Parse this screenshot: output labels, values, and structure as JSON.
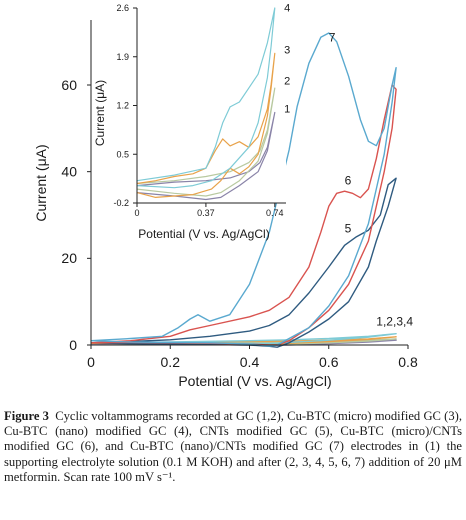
{
  "chart_data": [
    {
      "type": "line",
      "xlabel": "Potential (V vs. Ag/AgCl)",
      "ylabel": "Current (μA)",
      "xlim": [
        0,
        0.8
      ],
      "ylim": [
        0,
        75
      ],
      "xticks": [
        "0",
        "0.2",
        "0.4",
        "0.6",
        "0.8"
      ],
      "yticks": [
        "0",
        "20",
        "40",
        "60"
      ],
      "grid": false,
      "curve_labels": [
        {
          "text": "7",
          "x": 0.6,
          "y": 70
        },
        {
          "text": "6",
          "x": 0.64,
          "y": 37
        },
        {
          "text": "5",
          "x": 0.64,
          "y": 26
        },
        {
          "text": "1,2,3,4",
          "x": 0.72,
          "y": 4.5
        }
      ],
      "series": [
        {
          "name": "1",
          "color": "#8a84a8",
          "x": [
            0.0,
            0.2,
            0.4,
            0.5,
            0.6,
            0.7,
            0.77,
            0.7,
            0.6,
            0.5,
            0.45,
            0.3,
            0.1,
            0.0
          ],
          "y": [
            0.3,
            0.4,
            0.5,
            0.5,
            0.6,
            0.9,
            1.1,
            0.7,
            0.3,
            0.0,
            -0.1,
            0.1,
            0.2,
            0.3
          ]
        },
        {
          "name": "2",
          "color": "#b8c9a0",
          "x": [
            0.0,
            0.2,
            0.4,
            0.5,
            0.6,
            0.7,
            0.77,
            0.7,
            0.6,
            0.5,
            0.45,
            0.3,
            0.1,
            0.0
          ],
          "y": [
            0.4,
            0.5,
            0.6,
            0.7,
            0.8,
            1.1,
            1.4,
            0.9,
            0.5,
            0.2,
            0.0,
            0.2,
            0.3,
            0.4
          ]
        },
        {
          "name": "3",
          "color": "#e8a24a",
          "x": [
            0.0,
            0.2,
            0.4,
            0.5,
            0.6,
            0.7,
            0.77,
            0.7,
            0.6,
            0.5,
            0.45,
            0.3,
            0.1,
            0.0
          ],
          "y": [
            0.4,
            0.6,
            0.8,
            0.9,
            1.1,
            1.4,
            1.9,
            1.3,
            0.8,
            0.4,
            0.1,
            0.3,
            0.4,
            0.4
          ]
        },
        {
          "name": "4",
          "color": "#7ecbd6",
          "x": [
            0.0,
            0.2,
            0.4,
            0.5,
            0.6,
            0.7,
            0.77,
            0.7,
            0.6,
            0.5,
            0.45,
            0.3,
            0.1,
            0.0
          ],
          "y": [
            0.5,
            0.7,
            1.0,
            1.2,
            1.5,
            2.0,
            2.6,
            1.8,
            1.1,
            0.6,
            0.3,
            0.5,
            0.5,
            0.5
          ]
        },
        {
          "name": "5",
          "color": "#2f5b80",
          "x": [
            0.0,
            0.1,
            0.2,
            0.3,
            0.4,
            0.45,
            0.5,
            0.55,
            0.6,
            0.64,
            0.67,
            0.7,
            0.73,
            0.75,
            0.77,
            0.75,
            0.72,
            0.7,
            0.65,
            0.6,
            0.55,
            0.5,
            0.47,
            0.45,
            0.4,
            0.3,
            0.2,
            0.1,
            0.0
          ],
          "y": [
            0.5,
            0.8,
            1.2,
            2.0,
            3.2,
            4.5,
            7.0,
            12.0,
            18.0,
            23.0,
            25.0,
            26.5,
            30.0,
            37.0,
            38.5,
            32.0,
            24.0,
            18.0,
            10.0,
            6.0,
            3.0,
            0.5,
            -0.5,
            -0.3,
            0.0,
            0.1,
            0.2,
            0.3,
            0.5
          ]
        },
        {
          "name": "6",
          "color": "#d9534f",
          "x": [
            0.0,
            0.1,
            0.2,
            0.25,
            0.3,
            0.4,
            0.45,
            0.5,
            0.55,
            0.58,
            0.6,
            0.62,
            0.64,
            0.66,
            0.68,
            0.7,
            0.72,
            0.74,
            0.76,
            0.77,
            0.76,
            0.74,
            0.72,
            0.7,
            0.65,
            0.6,
            0.55,
            0.5,
            0.47,
            0.45,
            0.4,
            0.3,
            0.2,
            0.1,
            0.0
          ],
          "y": [
            0.5,
            1.0,
            2.0,
            3.5,
            4.5,
            6.5,
            8.0,
            11.0,
            18.0,
            26.0,
            32.0,
            35.0,
            35.5,
            35.0,
            34.0,
            36.0,
            43.0,
            52.0,
            60.0,
            59.0,
            50.0,
            40.0,
            32.0,
            24.0,
            14.0,
            8.0,
            4.0,
            1.0,
            0.0,
            0.0,
            0.2,
            0.4,
            0.5,
            0.6,
            0.5
          ]
        },
        {
          "name": "7",
          "color": "#5aa9cf",
          "x": [
            0.0,
            0.1,
            0.18,
            0.22,
            0.25,
            0.27,
            0.3,
            0.35,
            0.4,
            0.45,
            0.5,
            0.52,
            0.55,
            0.58,
            0.6,
            0.62,
            0.65,
            0.68,
            0.7,
            0.72,
            0.74,
            0.76,
            0.77,
            0.76,
            0.74,
            0.72,
            0.7,
            0.65,
            0.6,
            0.55,
            0.5,
            0.47,
            0.45,
            0.4,
            0.3,
            0.2,
            0.1,
            0.0
          ],
          "y": [
            1.0,
            1.5,
            2.0,
            4.0,
            6.0,
            7.0,
            5.5,
            7.0,
            14.0,
            26.0,
            45.0,
            55.0,
            65.0,
            71.0,
            72.0,
            70.0,
            62.0,
            52.0,
            47.0,
            46.0,
            50.0,
            60.0,
            64.0,
            56.0,
            44.0,
            36.0,
            28.0,
            16.0,
            9.0,
            4.0,
            1.5,
            0.0,
            -0.2,
            0.2,
            0.5,
            0.6,
            0.7,
            1.0
          ]
        }
      ]
    },
    {
      "type": "line",
      "xlabel": "Potential (V vs. Ag/AgCl)",
      "ylabel": "Current (μA)",
      "xlim": [
        0,
        0.8
      ],
      "ylim": [
        -0.2,
        2.6
      ],
      "xticks": [
        "0",
        "0.37",
        "0.74"
      ],
      "yticks": [
        "-0.2",
        "0.5",
        "1.2",
        "1.9",
        "2.6"
      ],
      "grid": false,
      "curve_labels": [
        {
          "text": "4",
          "x": 0.79,
          "y": 2.55
        },
        {
          "text": "3",
          "x": 0.79,
          "y": 1.95
        },
        {
          "text": "2",
          "x": 0.79,
          "y": 1.5
        },
        {
          "text": "1",
          "x": 0.79,
          "y": 1.1
        }
      ],
      "series": [
        {
          "name": "1",
          "color": "#8a84a8",
          "x": [
            0.0,
            0.2,
            0.37,
            0.5,
            0.6,
            0.66,
            0.7,
            0.72,
            0.74,
            0.7,
            0.65,
            0.55,
            0.45,
            0.37,
            0.2,
            0.0
          ],
          "y": [
            0.05,
            0.1,
            0.12,
            0.16,
            0.25,
            0.38,
            0.6,
            0.85,
            1.1,
            0.55,
            0.25,
            0.05,
            -0.12,
            -0.15,
            -0.1,
            -0.05
          ]
        },
        {
          "name": "2",
          "color": "#b8c9a0",
          "x": [
            0.0,
            0.2,
            0.37,
            0.5,
            0.6,
            0.66,
            0.7,
            0.72,
            0.74,
            0.7,
            0.65,
            0.55,
            0.45,
            0.37,
            0.2,
            0.0
          ],
          "y": [
            0.08,
            0.12,
            0.18,
            0.25,
            0.38,
            0.55,
            0.85,
            1.15,
            1.45,
            0.8,
            0.4,
            0.12,
            -0.05,
            -0.1,
            -0.06,
            0.0
          ]
        },
        {
          "name": "3",
          "color": "#e8a24a",
          "x": [
            0.0,
            0.1,
            0.2,
            0.3,
            0.37,
            0.42,
            0.46,
            0.5,
            0.55,
            0.6,
            0.65,
            0.7,
            0.72,
            0.74,
            0.72,
            0.7,
            0.65,
            0.6,
            0.55,
            0.5,
            0.45,
            0.4,
            0.3,
            0.2,
            0.1,
            0.0
          ],
          "y": [
            0.08,
            0.12,
            0.18,
            0.22,
            0.3,
            0.55,
            0.72,
            0.62,
            0.68,
            0.6,
            0.75,
            1.15,
            1.5,
            1.95,
            1.45,
            1.05,
            0.5,
            0.32,
            0.22,
            0.3,
            0.12,
            0.0,
            -0.08,
            -0.1,
            -0.12,
            -0.05
          ]
        },
        {
          "name": "4",
          "color": "#7ecbd6",
          "x": [
            0.0,
            0.2,
            0.37,
            0.42,
            0.46,
            0.5,
            0.55,
            0.6,
            0.65,
            0.7,
            0.72,
            0.74,
            0.72,
            0.7,
            0.65,
            0.6,
            0.5,
            0.4,
            0.3,
            0.2,
            0.0
          ],
          "y": [
            0.12,
            0.2,
            0.3,
            0.6,
            0.95,
            1.18,
            1.25,
            1.45,
            1.65,
            2.1,
            2.35,
            2.6,
            2.05,
            1.6,
            0.95,
            0.6,
            0.3,
            0.12,
            0.05,
            0.02,
            0.05
          ]
        }
      ]
    }
  ],
  "caption": {
    "label": "Figure 3",
    "text": "Cyclic voltammograms recorded at GC (1,2), Cu-BTC (micro) modified GC (3), Cu-BTC (nano) modified GC (4), CNTs modified GC (5), Cu-BTC (micro)/CNTs modified GC (6), and Cu-BTC (nano)/CNTs modified GC (7) electrodes in (1) the supporting electrolyte solution (0.1 M KOH) and after (2, 3, 4, 5, 6, 7) addition of 20 μM metformin. Scan rate 100 mV s⁻¹."
  }
}
